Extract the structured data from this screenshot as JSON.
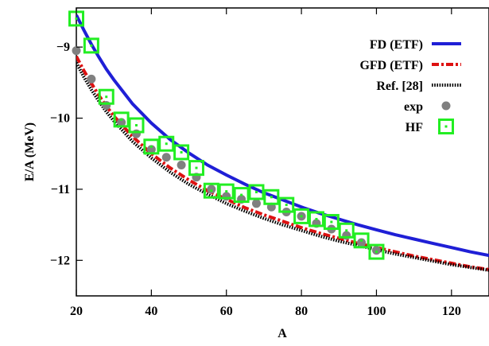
{
  "chart_data": {
    "type": "scatter",
    "title": "",
    "xlabel": "A",
    "ylabel": "E/A (MeV)",
    "xlim": [
      20,
      130
    ],
    "ylim": [
      -12.5,
      -8.45
    ],
    "xticks": [
      20,
      40,
      60,
      80,
      100,
      120
    ],
    "yticks": [
      -9,
      -10,
      -11,
      -12
    ],
    "xtick_labels": [
      "20",
      "40",
      "60",
      "80",
      "100",
      "120"
    ],
    "ytick_labels": [
      "−9",
      "−10",
      "−11",
      "−12"
    ],
    "grid": false,
    "legend_position": "top-right",
    "series": [
      {
        "name": "FD (ETF)",
        "kind": "line",
        "style": "solid",
        "color": "#1f1fd6",
        "x": [
          20,
          22,
          24,
          26,
          28,
          30,
          35,
          40,
          45,
          50,
          55,
          60,
          65,
          70,
          75,
          80,
          85,
          90,
          95,
          100,
          105,
          110,
          115,
          120,
          125,
          130
        ],
        "y": [
          -8.55,
          -8.76,
          -8.96,
          -9.14,
          -9.31,
          -9.46,
          -9.8,
          -10.07,
          -10.3,
          -10.49,
          -10.66,
          -10.8,
          -10.93,
          -11.05,
          -11.15,
          -11.25,
          -11.34,
          -11.42,
          -11.5,
          -11.57,
          -11.64,
          -11.7,
          -11.76,
          -11.82,
          -11.88,
          -11.93
        ]
      },
      {
        "name": "GFD (ETF)",
        "kind": "line",
        "style": "dash-dot",
        "color": "#dd1111",
        "x": [
          20,
          22,
          24,
          26,
          28,
          30,
          35,
          40,
          45,
          50,
          55,
          60,
          65,
          70,
          75,
          80,
          85,
          90,
          95,
          100,
          105,
          110,
          115,
          120,
          125,
          130
        ],
        "y": [
          -9.13,
          -9.33,
          -9.51,
          -9.68,
          -9.83,
          -9.97,
          -10.26,
          -10.5,
          -10.7,
          -10.87,
          -11.02,
          -11.14,
          -11.26,
          -11.36,
          -11.45,
          -11.54,
          -11.62,
          -11.69,
          -11.76,
          -11.82,
          -11.88,
          -11.94,
          -11.99,
          -12.04,
          -12.09,
          -12.13
        ]
      },
      {
        "name": "Ref. [28]",
        "kind": "line",
        "style": "dotted",
        "color": "#000000",
        "x": [
          20,
          22,
          24,
          26,
          28,
          30,
          35,
          40,
          45,
          50,
          55,
          60,
          65,
          70,
          75,
          80,
          85,
          90,
          95,
          100,
          105,
          110,
          115,
          120,
          125,
          130
        ],
        "y": [
          -9.22,
          -9.42,
          -9.6,
          -9.76,
          -9.91,
          -10.04,
          -10.33,
          -10.56,
          -10.76,
          -10.93,
          -11.07,
          -11.2,
          -11.31,
          -11.41,
          -11.5,
          -11.58,
          -11.66,
          -11.73,
          -11.79,
          -11.85,
          -11.91,
          -11.96,
          -12.01,
          -12.06,
          -12.1,
          -12.14
        ]
      },
      {
        "name": "exp",
        "kind": "points",
        "marker": "circle",
        "color": "#808080",
        "x": [
          20,
          24,
          28,
          32,
          36,
          40,
          44,
          48,
          52,
          56,
          60,
          64,
          68,
          72,
          76,
          80,
          84,
          88,
          92,
          96,
          100
        ],
        "y": [
          -9.05,
          -9.45,
          -9.82,
          -10.06,
          -10.22,
          -10.44,
          -10.55,
          -10.66,
          -10.83,
          -11.0,
          -11.1,
          -11.14,
          -11.2,
          -11.25,
          -11.32,
          -11.38,
          -11.48,
          -11.56,
          -11.65,
          -11.75,
          -11.86
        ]
      },
      {
        "name": "HF",
        "kind": "points",
        "marker": "dotted-square",
        "color": "#22ee22",
        "x": [
          20,
          24,
          28,
          32,
          36,
          40,
          44,
          48,
          52,
          56,
          60,
          64,
          68,
          72,
          76,
          80,
          84,
          88,
          92,
          96,
          100
        ],
        "y": [
          -8.6,
          -8.98,
          -9.7,
          -10.02,
          -10.1,
          -10.4,
          -10.36,
          -10.48,
          -10.7,
          -11.02,
          -11.03,
          -11.08,
          -11.04,
          -11.11,
          -11.22,
          -11.38,
          -11.42,
          -11.46,
          -11.58,
          -11.72,
          -11.88
        ]
      }
    ]
  }
}
